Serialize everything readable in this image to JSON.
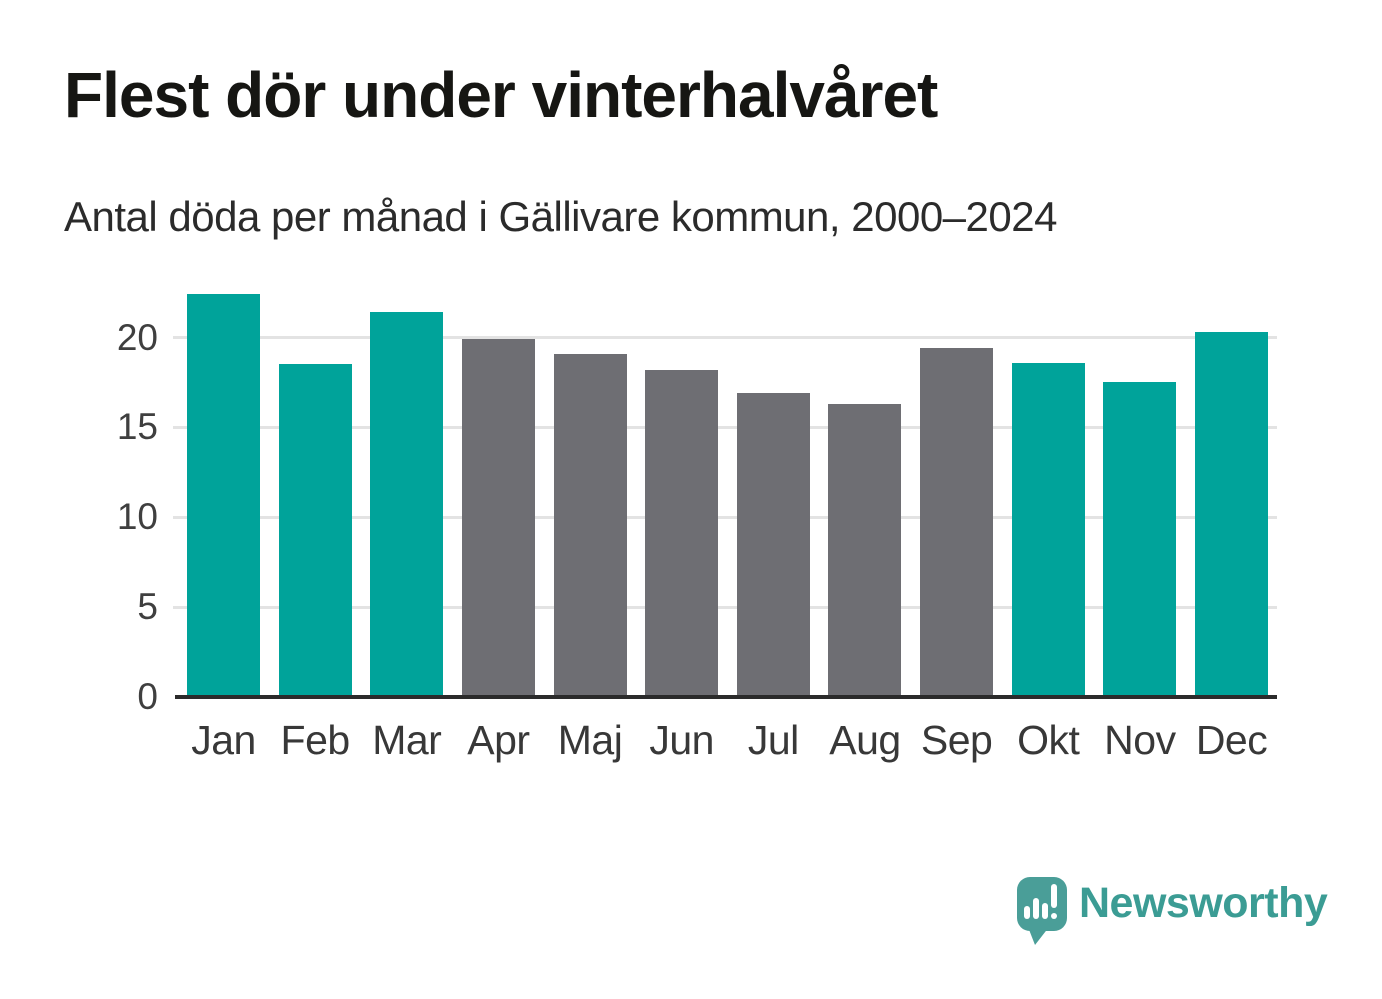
{
  "chart_data": {
    "type": "bar",
    "title": "Flest dör under vinterhalvåret",
    "subtitle": "Antal döda per månad i Gällivare kommun, 2000–2024",
    "categories": [
      "Jan",
      "Feb",
      "Mar",
      "Apr",
      "Maj",
      "Jun",
      "Jul",
      "Aug",
      "Sep",
      "Okt",
      "Nov",
      "Dec"
    ],
    "values": [
      22.4,
      18.5,
      21.4,
      19.9,
      19.1,
      18.2,
      16.9,
      16.3,
      19.4,
      18.6,
      17.5,
      20.3
    ],
    "seasons": [
      "winter",
      "winter",
      "winter",
      "summer",
      "summer",
      "summer",
      "summer",
      "summer",
      "summer",
      "winter",
      "winter",
      "winter"
    ],
    "colors": {
      "winter": "#00a39a",
      "summer": "#6e6e73"
    },
    "y_ticks": [
      0,
      5,
      10,
      15,
      20
    ],
    "y_tick_labels": [
      "0",
      "5",
      "10",
      "15",
      "20"
    ],
    "ylim": [
      0,
      23.2
    ],
    "xlabel": "",
    "ylabel": "",
    "grid": "horizontal",
    "legend": "none"
  },
  "footer": {
    "brand": "Newsworthy",
    "brand_color": "#3b9c94",
    "logo_icon": "speech-bubble-bar-chart-exclamation",
    "logo_color": "#4a9e98"
  }
}
